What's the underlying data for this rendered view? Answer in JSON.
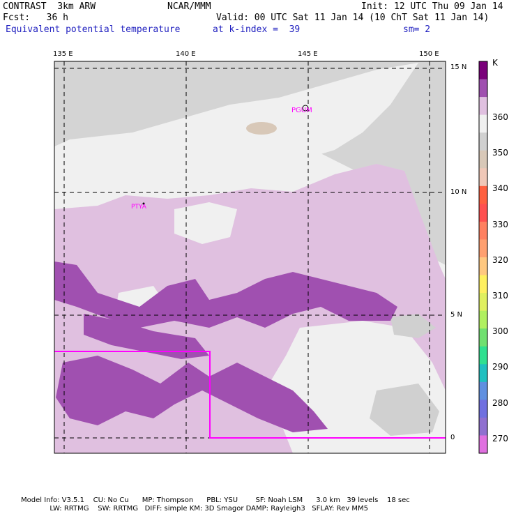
{
  "header": {
    "model": "CONTRAST  3km ARW",
    "org": "NCAR/MMM",
    "init": "Init: 12 UTC Thu 09 Jan 14",
    "fcst": "Fcst:   36 h",
    "valid": "Valid: 00 UTC Sat 11 Jan 14 (10 ChT Sat 11 Jan 14)",
    "field": "Equivalent potential temperature",
    "level": "at k-index =  39",
    "smooth": "sm= 2"
  },
  "map": {
    "lon_labels": [
      "135 E",
      "140 E",
      "145 E",
      "150 E"
    ],
    "lat_labels": [
      "15 N",
      "10 N",
      "5 N",
      "0"
    ],
    "stations": [
      {
        "name": "PGUM",
        "lon": 144.8,
        "lat": 13.5
      },
      {
        "name": "PTYA",
        "lon": 138.1,
        "lat": 9.5
      }
    ],
    "colors": {
      "lavender": "#e0c0e0",
      "purple": "#a050b0",
      "white": "#f0f0f0",
      "gray": "#d0d0d0",
      "tan": "#d8c8b8",
      "box": "#ff00ff"
    }
  },
  "colorbar": {
    "unit": "K",
    "tick_labels": [
      "360",
      "350",
      "340",
      "330",
      "320",
      "310",
      "300",
      "290",
      "280",
      "270"
    ],
    "swatches": [
      "#7a007a",
      "#a050b0",
      "#e0c0e0",
      "#f0f0f0",
      "#d0d0d0",
      "#d8c8b8",
      "#f0c8b8",
      "#ff6040",
      "#ff5050",
      "#ff8060",
      "#ffa070",
      "#ffc880",
      "#fff060",
      "#e0f060",
      "#b0f060",
      "#70e070",
      "#30e090",
      "#20c0c0",
      "#6090e0",
      "#7070e0",
      "#9070d0",
      "#e070e0"
    ]
  },
  "footer": {
    "line1": "Model Info: V3.5.1    CU: No Cu      MP: Thompson      PBL: YSU        SF: Noah LSM      3.0 km   39 levels    18 sec",
    "line2": "             LW: RRTMG    SW: RRTMG   DIFF: simple KM: 3D Smagor DAMP: Rayleigh3   SFLAY: Rev MM5"
  }
}
